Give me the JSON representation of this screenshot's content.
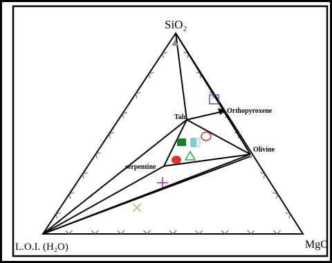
{
  "vertices": {
    "top": "SiO₂",
    "bottom_left": "L.O.I. (H₂O)",
    "bottom_right": "MgO"
  },
  "phase_labels": {
    "talc": "Talc",
    "orthopyroxene": "Orthopyroxene",
    "olivine": "Olivine",
    "serpentine": "serpentine"
  },
  "colors": {
    "frame": "#000000",
    "grey_triangle": "#8c8c8c",
    "blue_square": "#3a3aa0",
    "red_circle_open": "#d03030",
    "teal_square": "#7fd0d0",
    "green_square": "#1a7a30",
    "green_triangle": "#22aa44",
    "red_circle": "#e03030",
    "purple_plus": "#9a2a9a",
    "olive_cross": "#b8b860"
  }
}
